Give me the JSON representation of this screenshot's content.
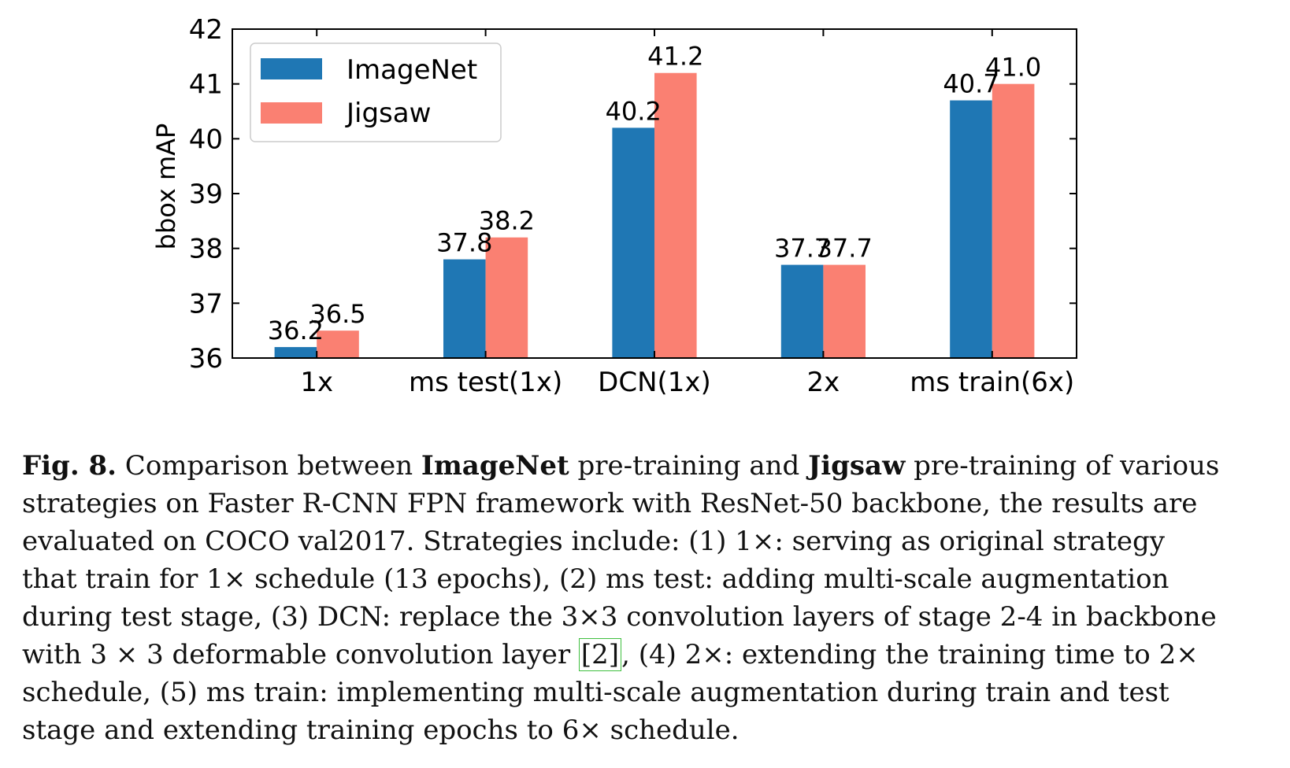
{
  "chart_data": {
    "type": "bar",
    "ylabel": "bbox mAP",
    "xlabel": "",
    "ylim": [
      36,
      42
    ],
    "yticks": [
      36,
      37,
      38,
      39,
      40,
      41,
      42
    ],
    "categories": [
      "1x",
      "ms test(1x)",
      "DCN(1x)",
      "2x",
      "ms train(6x)"
    ],
    "series": [
      {
        "name": "ImageNet",
        "color": "#1f77b4",
        "values": [
          36.2,
          37.8,
          40.2,
          37.7,
          40.7
        ],
        "labels": [
          "36.2",
          "37.8",
          "40.2",
          "37.7",
          "40.7"
        ]
      },
      {
        "name": "Jigsaw",
        "color": "#fa8072",
        "values": [
          36.5,
          38.2,
          41.2,
          37.7,
          41.0
        ],
        "labels": [
          "36.5",
          "38.2",
          "41.2",
          "37.7",
          "41.0"
        ]
      }
    ],
    "legend_position": "top-left",
    "grid": false
  },
  "caption": {
    "figure_label": "Fig. 8.",
    "part1": " Comparison between ",
    "bold1": "ImageNet",
    "part2": " pre-training and ",
    "bold2": "Jigsaw",
    "part3": " pre-training of various strategies on Faster R-CNN FPN framework with ResNet-50 backbone, the results are evaluated on COCO val2017. Strategies include: (1) 1×: serving as original strategy that train for 1× schedule (13 epochs), (2) ms test: adding multi-scale augmentation during test stage, (3) DCN: replace the 3×3 convolution layers of stage 2-4 in backbone with 3 × 3 deformable convolution layer ",
    "citation": "[2]",
    "part4": ", (4) 2×: extending the training time to 2× schedule, (5) ms train: implementing multi-scale augmentation during train and test stage and extending training epochs to 6× schedule."
  }
}
